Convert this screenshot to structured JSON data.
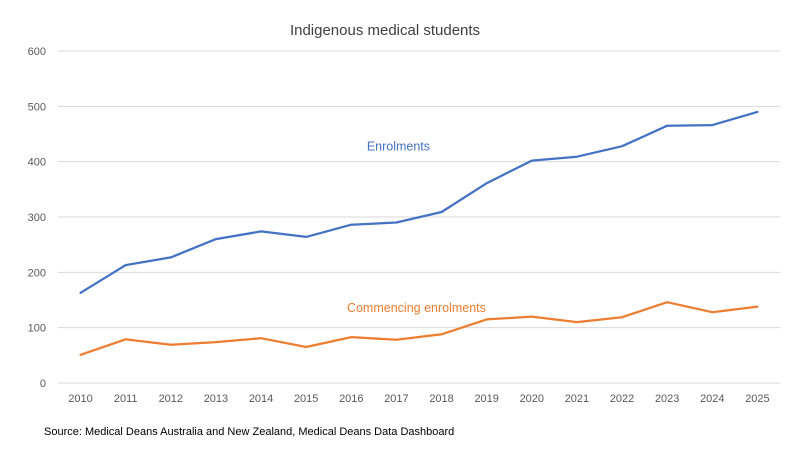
{
  "chart_data": {
    "type": "line",
    "title": "Indigenous medical students",
    "xlabel": "",
    "ylabel": "",
    "categories": [
      "2010",
      "2011",
      "2012",
      "2013",
      "2014",
      "2015",
      "2016",
      "2017",
      "2018",
      "2019",
      "2020",
      "2021",
      "2022",
      "2023",
      "2024",
      "2025"
    ],
    "ylim": [
      0,
      600
    ],
    "yticks": [
      0,
      100,
      200,
      300,
      400,
      500,
      600
    ],
    "grid": true,
    "series": [
      {
        "name": "Enrolments",
        "color": "#4472C4",
        "values": [
          163,
          213,
          227,
          260,
          274,
          264,
          286,
          290,
          309,
          361,
          402,
          409,
          428,
          465,
          466,
          490
        ]
      },
      {
        "name": "Commencing enrolments",
        "color": "#ED7D31",
        "values": [
          51,
          79,
          69,
          74,
          81,
          65,
          83,
          78,
          88,
          115,
          120,
          110,
          119,
          146,
          128,
          138
        ]
      }
    ]
  },
  "source": "Source: Medical Deans Australia and New Zealand, Medical Deans Data Dashboard",
  "colors": {
    "grid": "#d9d9d9",
    "axis": "#d9d9d9",
    "tick_text": "#595959",
    "title_text": "#404040"
  }
}
